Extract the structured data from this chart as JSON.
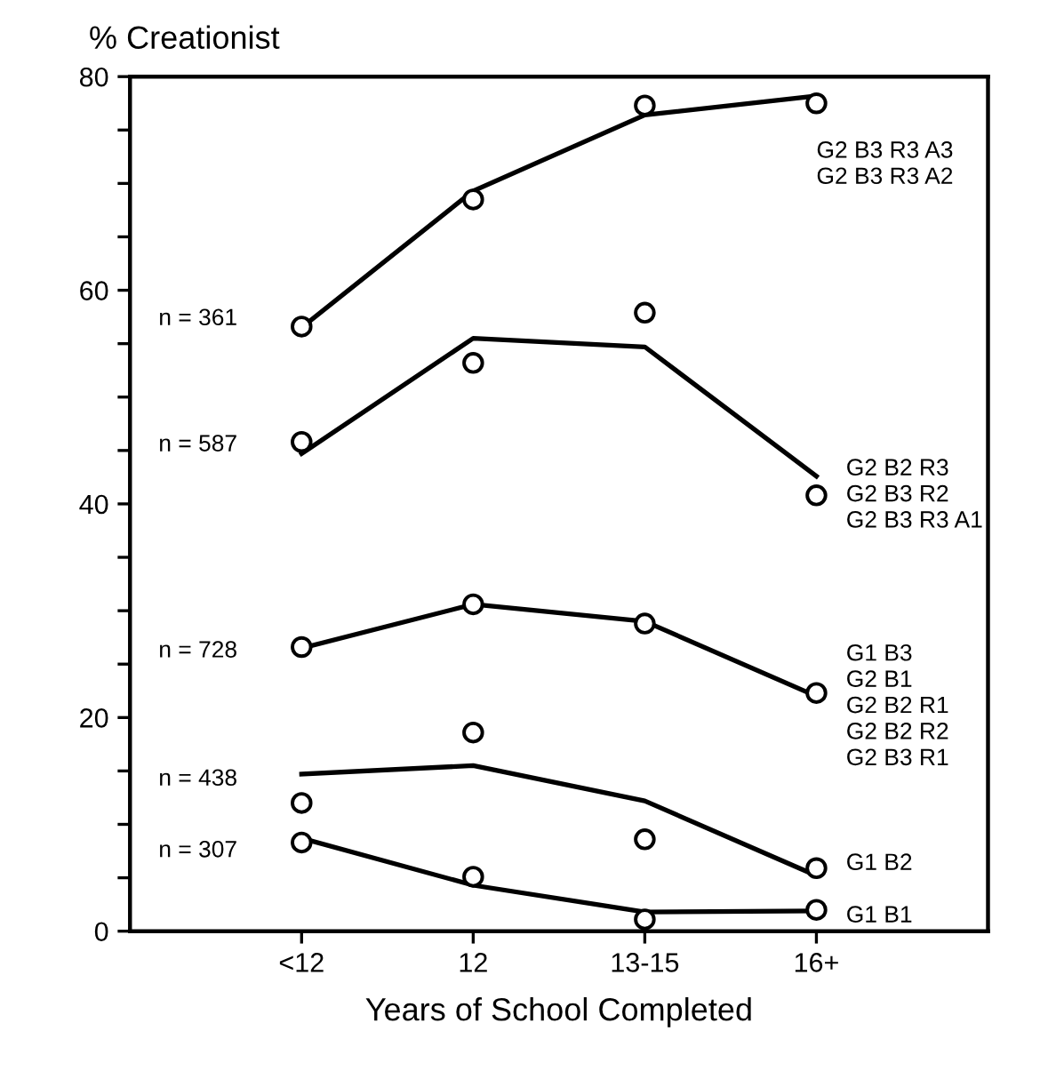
{
  "chart_data": {
    "type": "line",
    "ylabel": "% Creationist",
    "xlabel": "Years of School Completed",
    "categories": [
      "<12",
      "12",
      "13-15",
      "16+"
    ],
    "ylim": [
      0,
      80
    ],
    "yticks": [
      0,
      {
        "value": 5,
        "label": null
      },
      {
        "value": 10,
        "label": null
      },
      {
        "value": 15,
        "label": null
      },
      20,
      {
        "value": 25,
        "label": null
      },
      {
        "value": 30,
        "label": null
      },
      {
        "value": 35,
        "label": null
      },
      40,
      {
        "value": 45,
        "label": null
      },
      {
        "value": 50,
        "label": null
      },
      {
        "value": 55,
        "label": null
      },
      60,
      {
        "value": 65,
        "label": null
      },
      {
        "value": 70,
        "label": null
      },
      {
        "value": 75,
        "label": null
      },
      80
    ],
    "grid": false,
    "legend": false,
    "series": [
      {
        "color": "#000000",
        "marker": "none",
        "values": [
          56.5,
          69.3,
          76.4,
          78.2
        ]
      },
      {
        "type": "scatter",
        "color": "#000000",
        "marker": "circle",
        "values": [
          56.6,
          68.5,
          77.3,
          77.5
        ]
      },
      {
        "color": "#000000",
        "marker": "none",
        "values": [
          44.7,
          55.5,
          54.7,
          42.6
        ]
      },
      {
        "type": "scatter",
        "color": "#000000",
        "marker": "circle",
        "values": [
          45.8,
          53.2,
          57.9,
          40.8
        ]
      },
      {
        "color": "#000000",
        "marker": "none",
        "values": [
          26.5,
          30.6,
          29.0,
          22.0
        ]
      },
      {
        "type": "scatter",
        "color": "#000000",
        "marker": "circle",
        "values": [
          26.6,
          30.6,
          28.8,
          22.3
        ]
      },
      {
        "color": "#000000",
        "marker": "none",
        "values": [
          14.7,
          15.5,
          12.2,
          5.2
        ]
      },
      {
        "type": "scatter",
        "color": "#000000",
        "marker": "circle",
        "values": [
          12.0,
          18.6,
          8.6,
          5.9
        ]
      },
      {
        "color": "#000000",
        "marker": "none",
        "values": [
          8.7,
          4.3,
          1.8,
          1.9
        ]
      },
      {
        "type": "scatter",
        "color": "#000000",
        "marker": "circle",
        "values": [
          8.3,
          5.1,
          1.1,
          2.0
        ]
      }
    ],
    "annotations": [
      {
        "text": "n = 361",
        "x": "<12",
        "y": 57.3
      },
      {
        "text": "n = 587",
        "x": "<12",
        "y": 45.5
      },
      {
        "text": "n = 728",
        "x": "<12",
        "y": 26.2
      },
      {
        "text": "n = 438",
        "x": "<12",
        "y": 14.2
      },
      {
        "text": "n = 307",
        "x": "<12",
        "y": 7.5
      },
      "G2 B3 R3 A3\nG2 B3 R3 A2",
      {
        "text": "G2 B2 R3\nG2 B3 R2\nG2 B3 R3 A1",
        "x": "16+",
        "y": 40.8
      },
      {
        "text": "G1 B3\nG2 B1\nG2 B2 R1\nG2 B2 R2\nG2 B3 R1",
        "x": "16+",
        "y": 21.0
      },
      {
        "text": "G1 B2",
        "x": "16+",
        "y": 6.3
      },
      {
        "text": "G1 B1",
        "x": "16+",
        "y": 1.4
      }
    ]
  }
}
